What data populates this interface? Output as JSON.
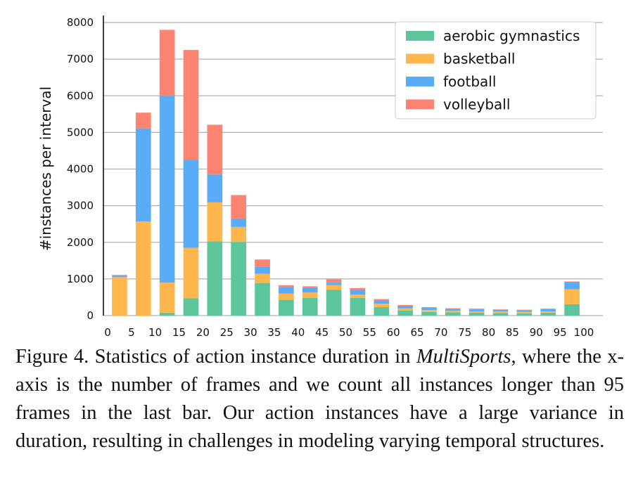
{
  "chart_data": {
    "type": "bar",
    "stacked": true,
    "ylabel": "#instances per interval",
    "xlabel": "",
    "ylim": [
      0,
      8000
    ],
    "yticks": [
      0,
      1000,
      2000,
      3000,
      4000,
      5000,
      6000,
      7000,
      8000
    ],
    "xticks": [
      0,
      5,
      10,
      15,
      20,
      25,
      30,
      35,
      40,
      45,
      50,
      55,
      60,
      65,
      70,
      75,
      80,
      85,
      90,
      95,
      100
    ],
    "xlim": [
      0,
      100
    ],
    "grid": true,
    "legend_position": "top-right",
    "bin_centers": [
      2.5,
      7.5,
      12.5,
      17.5,
      22.5,
      27.5,
      32.5,
      37.5,
      42.5,
      47.5,
      52.5,
      57.5,
      62.5,
      67.5,
      72.5,
      77.5,
      82.5,
      87.5,
      92.5,
      97.5
    ],
    "bar_width": 3.2,
    "series": [
      {
        "name": "aerobic gymnastics",
        "color": "#5cc59b",
        "values": [
          0,
          0,
          80,
          470,
          2030,
          2010,
          890,
          430,
          480,
          700,
          480,
          230,
          140,
          100,
          90,
          80,
          70,
          60,
          80,
          310
        ]
      },
      {
        "name": "basketball",
        "color": "#ffb74d",
        "values": [
          1050,
          2570,
          820,
          1380,
          1060,
          410,
          250,
          170,
          150,
          130,
          90,
          90,
          60,
          50,
          40,
          30,
          40,
          40,
          30,
          410
        ]
      },
      {
        "name": "football",
        "color": "#5aabf8",
        "values": [
          40,
          2540,
          5100,
          2400,
          760,
          230,
          200,
          180,
          140,
          70,
          130,
          100,
          70,
          60,
          50,
          60,
          50,
          50,
          70,
          200
        ]
      },
      {
        "name": "volleyball",
        "color": "#fc8471",
        "values": [
          20,
          430,
          1800,
          3000,
          1360,
          640,
          190,
          50,
          30,
          90,
          50,
          30,
          20,
          20,
          20,
          20,
          10,
          10,
          10,
          10
        ]
      }
    ]
  },
  "caption": {
    "prefix": "Figure 4. Statistics of action instance duration in ",
    "italic": "MultiSports",
    "suffix": ", where the x-axis is the number of frames and we count all instances longer than 95 frames in the last bar. Our action instances have a large variance in duration, resulting in challenges in modeling varying temporal structures."
  }
}
